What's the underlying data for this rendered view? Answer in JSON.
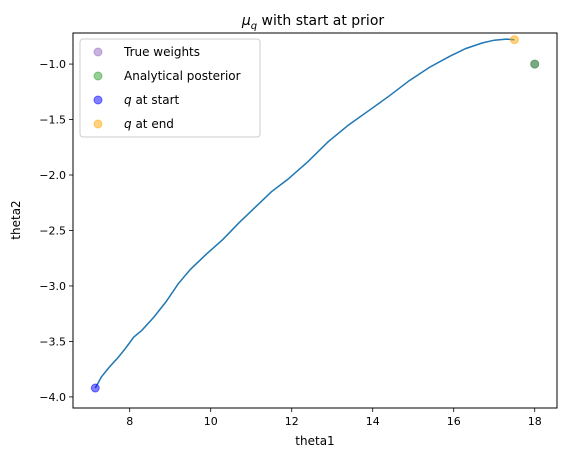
{
  "chart_data": {
    "type": "scatter",
    "title_main": "μ",
    "title_sub": "q",
    "title_rest": " with start at prior",
    "xlabel": "theta1",
    "ylabel": "theta2",
    "xlim": [
      6.6,
      18.55
    ],
    "ylim": [
      -4.1,
      -0.72
    ],
    "xticks": [
      8,
      10,
      12,
      14,
      16,
      18
    ],
    "yticks": [
      -4.0,
      -3.5,
      -3.0,
      -2.5,
      -2.0,
      -1.5,
      -1.0
    ],
    "xtick_labels": [
      "8",
      "10",
      "12",
      "14",
      "16",
      "18"
    ],
    "ytick_labels": [
      "−4.0",
      "−3.5",
      "−3.0",
      "−2.5",
      "−2.0",
      "−1.5",
      "−1.0"
    ],
    "grid": false,
    "legend_placement": "upper-left",
    "trajectory": {
      "color": "#1f77b4",
      "x": [
        7.15,
        7.3,
        7.5,
        7.7,
        7.9,
        8.1,
        8.3,
        8.6,
        8.9,
        9.2,
        9.5,
        9.9,
        10.3,
        10.7,
        11.1,
        11.5,
        11.9,
        12.4,
        12.9,
        13.4,
        13.9,
        14.4,
        14.9,
        15.4,
        15.9,
        16.3,
        16.7,
        17.0,
        17.3,
        17.5
      ],
      "y": [
        -3.92,
        -3.82,
        -3.73,
        -3.65,
        -3.56,
        -3.46,
        -3.4,
        -3.28,
        -3.14,
        -2.98,
        -2.85,
        -2.71,
        -2.58,
        -2.43,
        -2.29,
        -2.15,
        -2.04,
        -1.88,
        -1.7,
        -1.55,
        -1.42,
        -1.29,
        -1.15,
        -1.03,
        -0.93,
        -0.86,
        -0.81,
        -0.785,
        -0.775,
        -0.78
      ]
    },
    "points": [
      {
        "label": "True weights",
        "x": 18.0,
        "y": -1.0,
        "color": "#9467bd",
        "alpha": 0.5
      },
      {
        "label": "Analytical posterior",
        "x": 18.0,
        "y": -1.0,
        "color": "#2ca02c",
        "alpha": 0.5
      },
      {
        "label": "q at start",
        "x": 7.15,
        "y": -3.92,
        "color": "#0000ff",
        "alpha": 0.5
      },
      {
        "label": "q at end",
        "x": 17.5,
        "y": -0.78,
        "color": "#ffa500",
        "alpha": 0.5
      }
    ],
    "legend": [
      {
        "text": "True weights",
        "italic_prefix": "",
        "color": "#9467bd"
      },
      {
        "text": "Analytical posterior",
        "italic_prefix": "",
        "color": "#2ca02c"
      },
      {
        "text": " at start",
        "italic_prefix": "q",
        "color": "#0000ff"
      },
      {
        "text": " at end",
        "italic_prefix": "q",
        "color": "#ffa500"
      }
    ]
  }
}
